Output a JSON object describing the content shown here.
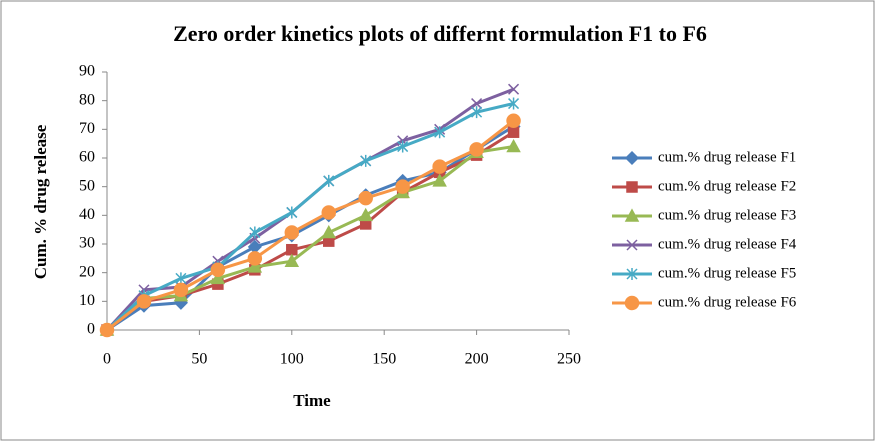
{
  "chart_data": {
    "type": "line",
    "title": "Zero order kinetics plots of differnt formulation F1 to F6",
    "x_label": "Time",
    "y_label": "Cum. % drug release",
    "x": [
      0,
      20,
      40,
      60,
      80,
      100,
      120,
      140,
      160,
      180,
      200,
      220
    ],
    "series": [
      {
        "name": "cum.% drug release F1",
        "color": "#4a7ebb",
        "marker": "diamond",
        "values": [
          0,
          8.5,
          9.5,
          22,
          29,
          33,
          40,
          47,
          52,
          55,
          63,
          71
        ]
      },
      {
        "name": "cum.% drug release F2",
        "color": "#be4b48",
        "marker": "square",
        "values": [
          0,
          10,
          12,
          16,
          21,
          28,
          31,
          37,
          48,
          55,
          61,
          69
        ]
      },
      {
        "name": "cum.% drug release F3",
        "color": "#98b954",
        "marker": "triangle",
        "values": [
          0,
          11,
          12,
          18,
          22,
          24,
          34,
          40,
          48,
          52,
          62,
          64
        ]
      },
      {
        "name": "cum.% drug release F4",
        "color": "#7d60a0",
        "marker": "x",
        "values": [
          0,
          14,
          15,
          24,
          32,
          41,
          52,
          59,
          66,
          70,
          79,
          84
        ]
      },
      {
        "name": "cum.% drug release F5",
        "color": "#46aac5",
        "marker": "star",
        "values": [
          0,
          12,
          18,
          22,
          34,
          41,
          52,
          59,
          64,
          69,
          76,
          79
        ]
      },
      {
        "name": "cum.% drug release F6",
        "color": "#f79646",
        "marker": "circle",
        "values": [
          0,
          10,
          14,
          21,
          25,
          34,
          41,
          46,
          50,
          57,
          63,
          73
        ]
      }
    ],
    "xlim": [
      0,
      250
    ],
    "xticks": [
      0,
      50,
      100,
      150,
      200,
      250
    ],
    "ylim": [
      0,
      90
    ],
    "yticks": [
      0,
      10,
      20,
      30,
      40,
      50,
      60,
      70,
      80,
      90
    ],
    "grid": false,
    "legend": "right"
  }
}
